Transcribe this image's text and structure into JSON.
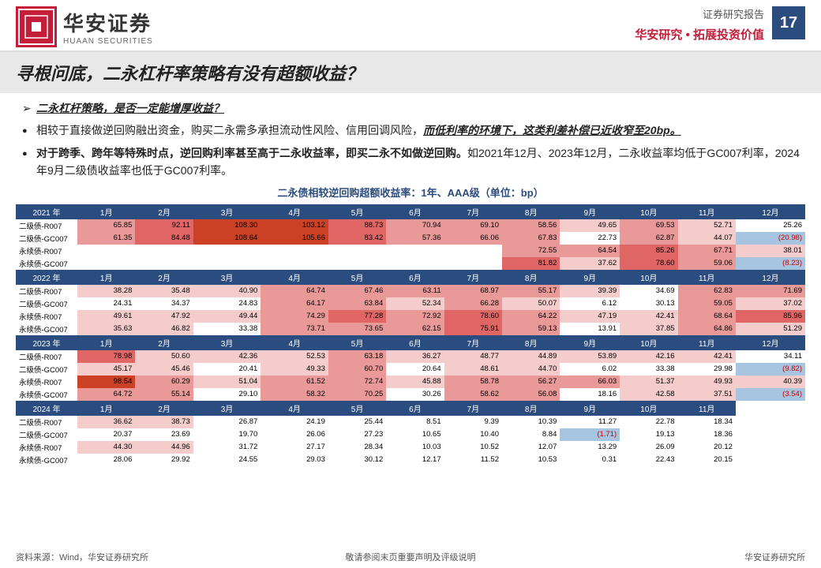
{
  "header": {
    "logo_cn": "华安证券",
    "logo_en": "HUAAN SECURITIES",
    "report_type": "证券研究报告",
    "tagline": "华安研究 • 拓展投资价值",
    "page_number": "17"
  },
  "title": "寻根问底，二永杠杆率策略有没有超额收益？",
  "bullets": [
    {
      "style": "arrow",
      "html": "<span class='underline-italic'>二永杠杆策略，是否一定能增厚收益？</span>"
    },
    {
      "style": "dot",
      "html": "相较于直接做逆回购融出资金，购买二永需多承担流动性风险、信用回调风险，<span class='underline-italic'>而低利率的环境下，这类利差补偿已近收窄至20bp。</span>"
    },
    {
      "style": "dot",
      "html": "<span class='bold'>对于跨季、跨年等特殊时点，逆回购利率甚至高于二永收益率，即买二永不如做逆回购。</span>如2021年12月、2023年12月，二永收益率均低于GC007利率，2024年9月二级债收益率也低于GC007利率。"
    }
  ],
  "chart_title": "二永债相较逆回购超额收益率：1年、AAA级（单位：bp）",
  "months": [
    "1月",
    "2月",
    "3月",
    "4月",
    "5月",
    "6月",
    "7月",
    "8月",
    "9月",
    "10月",
    "11月",
    "12月"
  ],
  "months11": [
    "1月",
    "2月",
    "3月",
    "4月",
    "5月",
    "6月",
    "7月",
    "8月",
    "9月",
    "10月",
    "11月"
  ],
  "years": [
    "2021 年",
    "2022 年",
    "2023 年",
    "2024 年"
  ],
  "labels": [
    "二级债-R007",
    "二级债-GC007",
    "永续债-R007",
    "永续债-GC007"
  ],
  "heat_colors": {
    "neg2": "#4f81bd",
    "neg1": "#a7c4e0",
    "zero": "#ffffff",
    "pos1": "#f4cccc",
    "pos2": "#ea9999",
    "pos3": "#e06666",
    "pos4": "#cc4125"
  },
  "data": {
    "2021": {
      "二级债-R007": [
        65.85,
        92.11,
        108.3,
        103.12,
        88.73,
        70.94,
        69.1,
        58.56,
        49.65,
        69.53,
        52.71,
        25.26
      ],
      "二级债-GC007": [
        61.35,
        84.48,
        108.64,
        105.66,
        83.42,
        57.36,
        66.06,
        67.83,
        22.73,
        62.87,
        44.07,
        -20.98
      ],
      "永续债-R007": [
        null,
        null,
        null,
        null,
        null,
        null,
        null,
        72.55,
        64.54,
        85.26,
        67.71,
        38.01
      ],
      "永续债-GC007": [
        null,
        null,
        null,
        null,
        null,
        null,
        null,
        81.82,
        37.62,
        78.6,
        59.06,
        -8.23
      ]
    },
    "2022": {
      "二级债-R007": [
        38.28,
        35.48,
        40.9,
        64.74,
        67.46,
        63.11,
        68.97,
        55.17,
        39.39,
        34.69,
        62.83,
        71.69
      ],
      "二级债-GC007": [
        24.31,
        34.37,
        24.83,
        64.17,
        63.84,
        52.34,
        66.28,
        50.07,
        6.12,
        30.13,
        59.05,
        37.02
      ],
      "永续债-R007": [
        49.61,
        47.92,
        49.44,
        74.29,
        77.28,
        72.92,
        78.6,
        64.22,
        47.19,
        42.41,
        68.64,
        85.96
      ],
      "永续债-GC007": [
        35.63,
        46.82,
        33.38,
        73.71,
        73.65,
        62.15,
        75.91,
        59.13,
        13.91,
        37.85,
        64.86,
        51.29
      ]
    },
    "2023": {
      "二级债-R007": [
        78.98,
        50.6,
        42.36,
        52.53,
        63.18,
        36.27,
        48.77,
        44.89,
        53.89,
        42.16,
        42.41,
        34.11
      ],
      "二级债-GC007": [
        45.17,
        45.46,
        20.41,
        49.33,
        60.7,
        20.64,
        48.61,
        44.7,
        6.02,
        33.38,
        29.98,
        -9.82
      ],
      "永续债-R007": [
        98.54,
        60.29,
        51.04,
        61.52,
        72.74,
        45.88,
        58.78,
        56.27,
        66.03,
        51.37,
        49.93,
        40.39
      ],
      "永续债-GC007": [
        64.72,
        55.14,
        29.1,
        58.32,
        70.25,
        30.26,
        58.62,
        56.08,
        18.16,
        42.58,
        37.51,
        -3.54
      ]
    },
    "2024": {
      "二级债-R007": [
        36.62,
        38.73,
        26.87,
        24.19,
        25.44,
        8.51,
        9.39,
        10.39,
        11.27,
        22.78,
        18.34
      ],
      "二级债-GC007": [
        20.37,
        23.69,
        19.7,
        26.06,
        27.23,
        10.65,
        10.4,
        8.84,
        -1.71,
        19.13,
        18.36
      ],
      "永续债-R007": [
        44.3,
        44.96,
        31.72,
        27.17,
        28.34,
        10.03,
        10.52,
        12.07,
        13.29,
        26.09,
        20.12
      ],
      "永续债-GC007": [
        28.06,
        29.92,
        24.55,
        29.03,
        30.12,
        12.17,
        11.52,
        10.53,
        0.31,
        22.43,
        20.15
      ]
    }
  },
  "footer": {
    "source": "资料来源：Wind，华安证券研究所",
    "disclaimer": "敬请参阅末页重要声明及评级说明",
    "org": "华安证券研究所"
  }
}
